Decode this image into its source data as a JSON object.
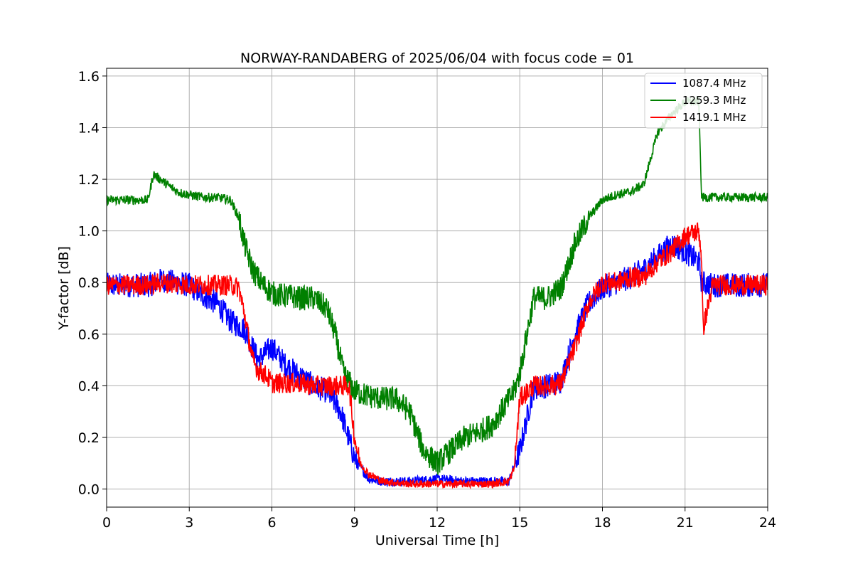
{
  "chart_data": {
    "type": "line",
    "title": "NORWAY-RANDABERG of 2025/06/04 with focus code = 01",
    "xlabel": "Universal Time [h]",
    "ylabel": "Y-factor [dB]",
    "xlim": [
      0,
      24
    ],
    "ylim": [
      -0.07,
      1.63
    ],
    "xticks": [
      0,
      3,
      6,
      9,
      12,
      15,
      18,
      21,
      24
    ],
    "xtick_labels": [
      "0",
      "3",
      "6",
      "9",
      "12",
      "15",
      "18",
      "21",
      "24"
    ],
    "yticks": [
      0.0,
      0.2,
      0.4,
      0.6,
      0.8,
      1.0,
      1.2,
      1.4,
      1.6
    ],
    "ytick_labels": [
      "0.0",
      "0.2",
      "0.4",
      "0.6",
      "0.8",
      "1.0",
      "1.2",
      "1.4",
      "1.6"
    ],
    "grid": true,
    "legend_position": "top-right",
    "series": [
      {
        "name": "1087.4 MHz",
        "color": "#0000ff",
        "noise": 0.03,
        "x": [
          0,
          1.5,
          2.0,
          3.0,
          3.5,
          4.0,
          4.5,
          5.0,
          5.5,
          6.0,
          6.5,
          7.0,
          7.5,
          8.0,
          8.5,
          9.0,
          9.5,
          10.0,
          11.0,
          12.0,
          13.0,
          14.0,
          14.6,
          15.0,
          15.5,
          16.0,
          16.5,
          17.0,
          17.5,
          18.0,
          18.5,
          19.0,
          19.5,
          20.0,
          20.5,
          21.0,
          21.5,
          21.6,
          22.0,
          23.0,
          24.0
        ],
        "y": [
          0.79,
          0.79,
          0.81,
          0.79,
          0.75,
          0.72,
          0.65,
          0.62,
          0.5,
          0.55,
          0.48,
          0.44,
          0.4,
          0.38,
          0.3,
          0.12,
          0.04,
          0.03,
          0.03,
          0.04,
          0.03,
          0.03,
          0.03,
          0.15,
          0.39,
          0.4,
          0.42,
          0.6,
          0.72,
          0.78,
          0.8,
          0.82,
          0.85,
          0.9,
          0.95,
          0.92,
          0.88,
          0.8,
          0.79,
          0.79,
          0.79
        ]
      },
      {
        "name": "1259.3 MHz",
        "color": "#008000",
        "noise": 0.03,
        "x": [
          0,
          1.5,
          1.7,
          2.2,
          2.6,
          3.0,
          3.5,
          4.0,
          4.5,
          4.8,
          5.0,
          5.3,
          5.6,
          6.0,
          6.3,
          6.5,
          7.0,
          7.5,
          8.0,
          8.3,
          8.6,
          9.0,
          9.5,
          10.0,
          10.5,
          11.0,
          11.5,
          12.0,
          12.5,
          13.0,
          13.5,
          14.0,
          14.5,
          14.8,
          15.0,
          15.5,
          16.0,
          16.5,
          17.0,
          17.5,
          18.0,
          18.5,
          19.0,
          19.5,
          20.0,
          20.5,
          21.0,
          21.5,
          21.6,
          22.0,
          23.0,
          24.0
        ],
        "y": [
          1.12,
          1.12,
          1.22,
          1.18,
          1.15,
          1.14,
          1.13,
          1.13,
          1.12,
          1.05,
          0.95,
          0.85,
          0.8,
          0.76,
          0.75,
          0.75,
          0.74,
          0.74,
          0.7,
          0.6,
          0.45,
          0.38,
          0.36,
          0.35,
          0.35,
          0.3,
          0.15,
          0.1,
          0.15,
          0.2,
          0.22,
          0.25,
          0.33,
          0.38,
          0.45,
          0.74,
          0.74,
          0.78,
          0.95,
          1.05,
          1.12,
          1.14,
          1.15,
          1.18,
          1.38,
          1.45,
          1.5,
          1.5,
          1.13,
          1.13,
          1.13,
          1.13
        ]
      },
      {
        "name": "1419.1 MHz",
        "color": "#ff0000",
        "noise": 0.025,
        "x": [
          0,
          1.5,
          2.0,
          3.0,
          3.5,
          4.0,
          4.5,
          4.8,
          5.0,
          5.3,
          5.5,
          5.8,
          6.0,
          6.5,
          7.0,
          7.5,
          8.0,
          8.5,
          8.8,
          9.0,
          9.2,
          9.5,
          10.0,
          11.0,
          12.0,
          13.0,
          14.0,
          14.6,
          14.8,
          15.0,
          15.5,
          16.0,
          16.5,
          17.0,
          17.5,
          18.0,
          18.5,
          19.0,
          19.5,
          20.0,
          20.5,
          21.0,
          21.5,
          21.6,
          21.65,
          22.0,
          23.0,
          24.0
        ],
        "y": [
          0.79,
          0.79,
          0.8,
          0.79,
          0.79,
          0.79,
          0.79,
          0.78,
          0.68,
          0.5,
          0.46,
          0.44,
          0.41,
          0.41,
          0.41,
          0.4,
          0.4,
          0.4,
          0.4,
          0.2,
          0.1,
          0.06,
          0.03,
          0.02,
          0.02,
          0.02,
          0.02,
          0.03,
          0.08,
          0.35,
          0.4,
          0.4,
          0.41,
          0.55,
          0.72,
          0.8,
          0.8,
          0.82,
          0.82,
          0.88,
          0.92,
          0.98,
          1.0,
          0.9,
          0.62,
          0.79,
          0.79,
          0.79
        ]
      }
    ]
  }
}
